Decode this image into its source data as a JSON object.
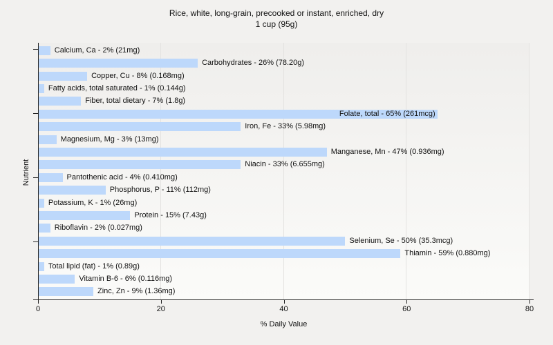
{
  "chart_data": {
    "type": "bar",
    "orientation": "horizontal",
    "title": "Rice, white, long-grain, precooked or instant, enriched, dry",
    "subtitle": "1 cup (95g)",
    "xlabel": "% Daily Value",
    "ylabel": "Nutrient",
    "xlim": [
      0,
      80
    ],
    "xticks": [
      0,
      20,
      40,
      60,
      80
    ],
    "ytick_rows": [
      0,
      5,
      10,
      15
    ],
    "grid": "vertical-light",
    "legend": "none",
    "bar_color": "#bdd8fb",
    "bars": [
      {
        "nutrient": "Calcium, Ca",
        "percent": 2,
        "amount": "21mg",
        "label": "Calcium, Ca - 2% (21mg)",
        "label_inside": false
      },
      {
        "nutrient": "Carbohydrates",
        "percent": 26,
        "amount": "78.20g",
        "label": "Carbohydrates - 26% (78.20g)",
        "label_inside": false
      },
      {
        "nutrient": "Copper, Cu",
        "percent": 8,
        "amount": "0.168mg",
        "label": "Copper, Cu - 8% (0.168mg)",
        "label_inside": false
      },
      {
        "nutrient": "Fatty acids, total saturated",
        "percent": 1,
        "amount": "0.144g",
        "label": "Fatty acids, total saturated - 1% (0.144g)",
        "label_inside": false
      },
      {
        "nutrient": "Fiber, total dietary",
        "percent": 7,
        "amount": "1.8g",
        "label": "Fiber, total dietary - 7% (1.8g)",
        "label_inside": false
      },
      {
        "nutrient": "Folate, total",
        "percent": 65,
        "amount": "261mcg",
        "label": "Folate, total - 65% (261mcg)",
        "label_inside": true
      },
      {
        "nutrient": "Iron, Fe",
        "percent": 33,
        "amount": "5.98mg",
        "label": "Iron, Fe - 33% (5.98mg)",
        "label_inside": false
      },
      {
        "nutrient": "Magnesium, Mg",
        "percent": 3,
        "amount": "13mg",
        "label": "Magnesium, Mg - 3% (13mg)",
        "label_inside": false
      },
      {
        "nutrient": "Manganese, Mn",
        "percent": 47,
        "amount": "0.936mg",
        "label": "Manganese, Mn - 47% (0.936mg)",
        "label_inside": false
      },
      {
        "nutrient": "Niacin",
        "percent": 33,
        "amount": "6.655mg",
        "label": "Niacin - 33% (6.655mg)",
        "label_inside": false
      },
      {
        "nutrient": "Pantothenic acid",
        "percent": 4,
        "amount": "0.410mg",
        "label": "Pantothenic acid - 4% (0.410mg)",
        "label_inside": false
      },
      {
        "nutrient": "Phosphorus, P",
        "percent": 11,
        "amount": "112mg",
        "label": "Phosphorus, P - 11% (112mg)",
        "label_inside": false
      },
      {
        "nutrient": "Potassium, K",
        "percent": 1,
        "amount": "26mg",
        "label": "Potassium, K - 1% (26mg)",
        "label_inside": false
      },
      {
        "nutrient": "Protein",
        "percent": 15,
        "amount": "7.43g",
        "label": "Protein - 15% (7.43g)",
        "label_inside": false
      },
      {
        "nutrient": "Riboflavin",
        "percent": 2,
        "amount": "0.027mg",
        "label": "Riboflavin - 2% (0.027mg)",
        "label_inside": false
      },
      {
        "nutrient": "Selenium, Se",
        "percent": 50,
        "amount": "35.3mcg",
        "label": "Selenium, Se - 50% (35.3mcg)",
        "label_inside": false
      },
      {
        "nutrient": "Thiamin",
        "percent": 59,
        "amount": "0.880mg",
        "label": "Thiamin - 59% (0.880mg)",
        "label_inside": false
      },
      {
        "nutrient": "Total lipid (fat)",
        "percent": 1,
        "amount": "0.89g",
        "label": "Total lipid (fat) - 1% (0.89g)",
        "label_inside": false
      },
      {
        "nutrient": "Vitamin B-6",
        "percent": 6,
        "amount": "0.116mg",
        "label": "Vitamin B-6 - 6% (0.116mg)",
        "label_inside": false
      },
      {
        "nutrient": "Zinc, Zn",
        "percent": 9,
        "amount": "1.36mg",
        "label": "Zinc, Zn - 9% (1.36mg)",
        "label_inside": false
      }
    ]
  }
}
